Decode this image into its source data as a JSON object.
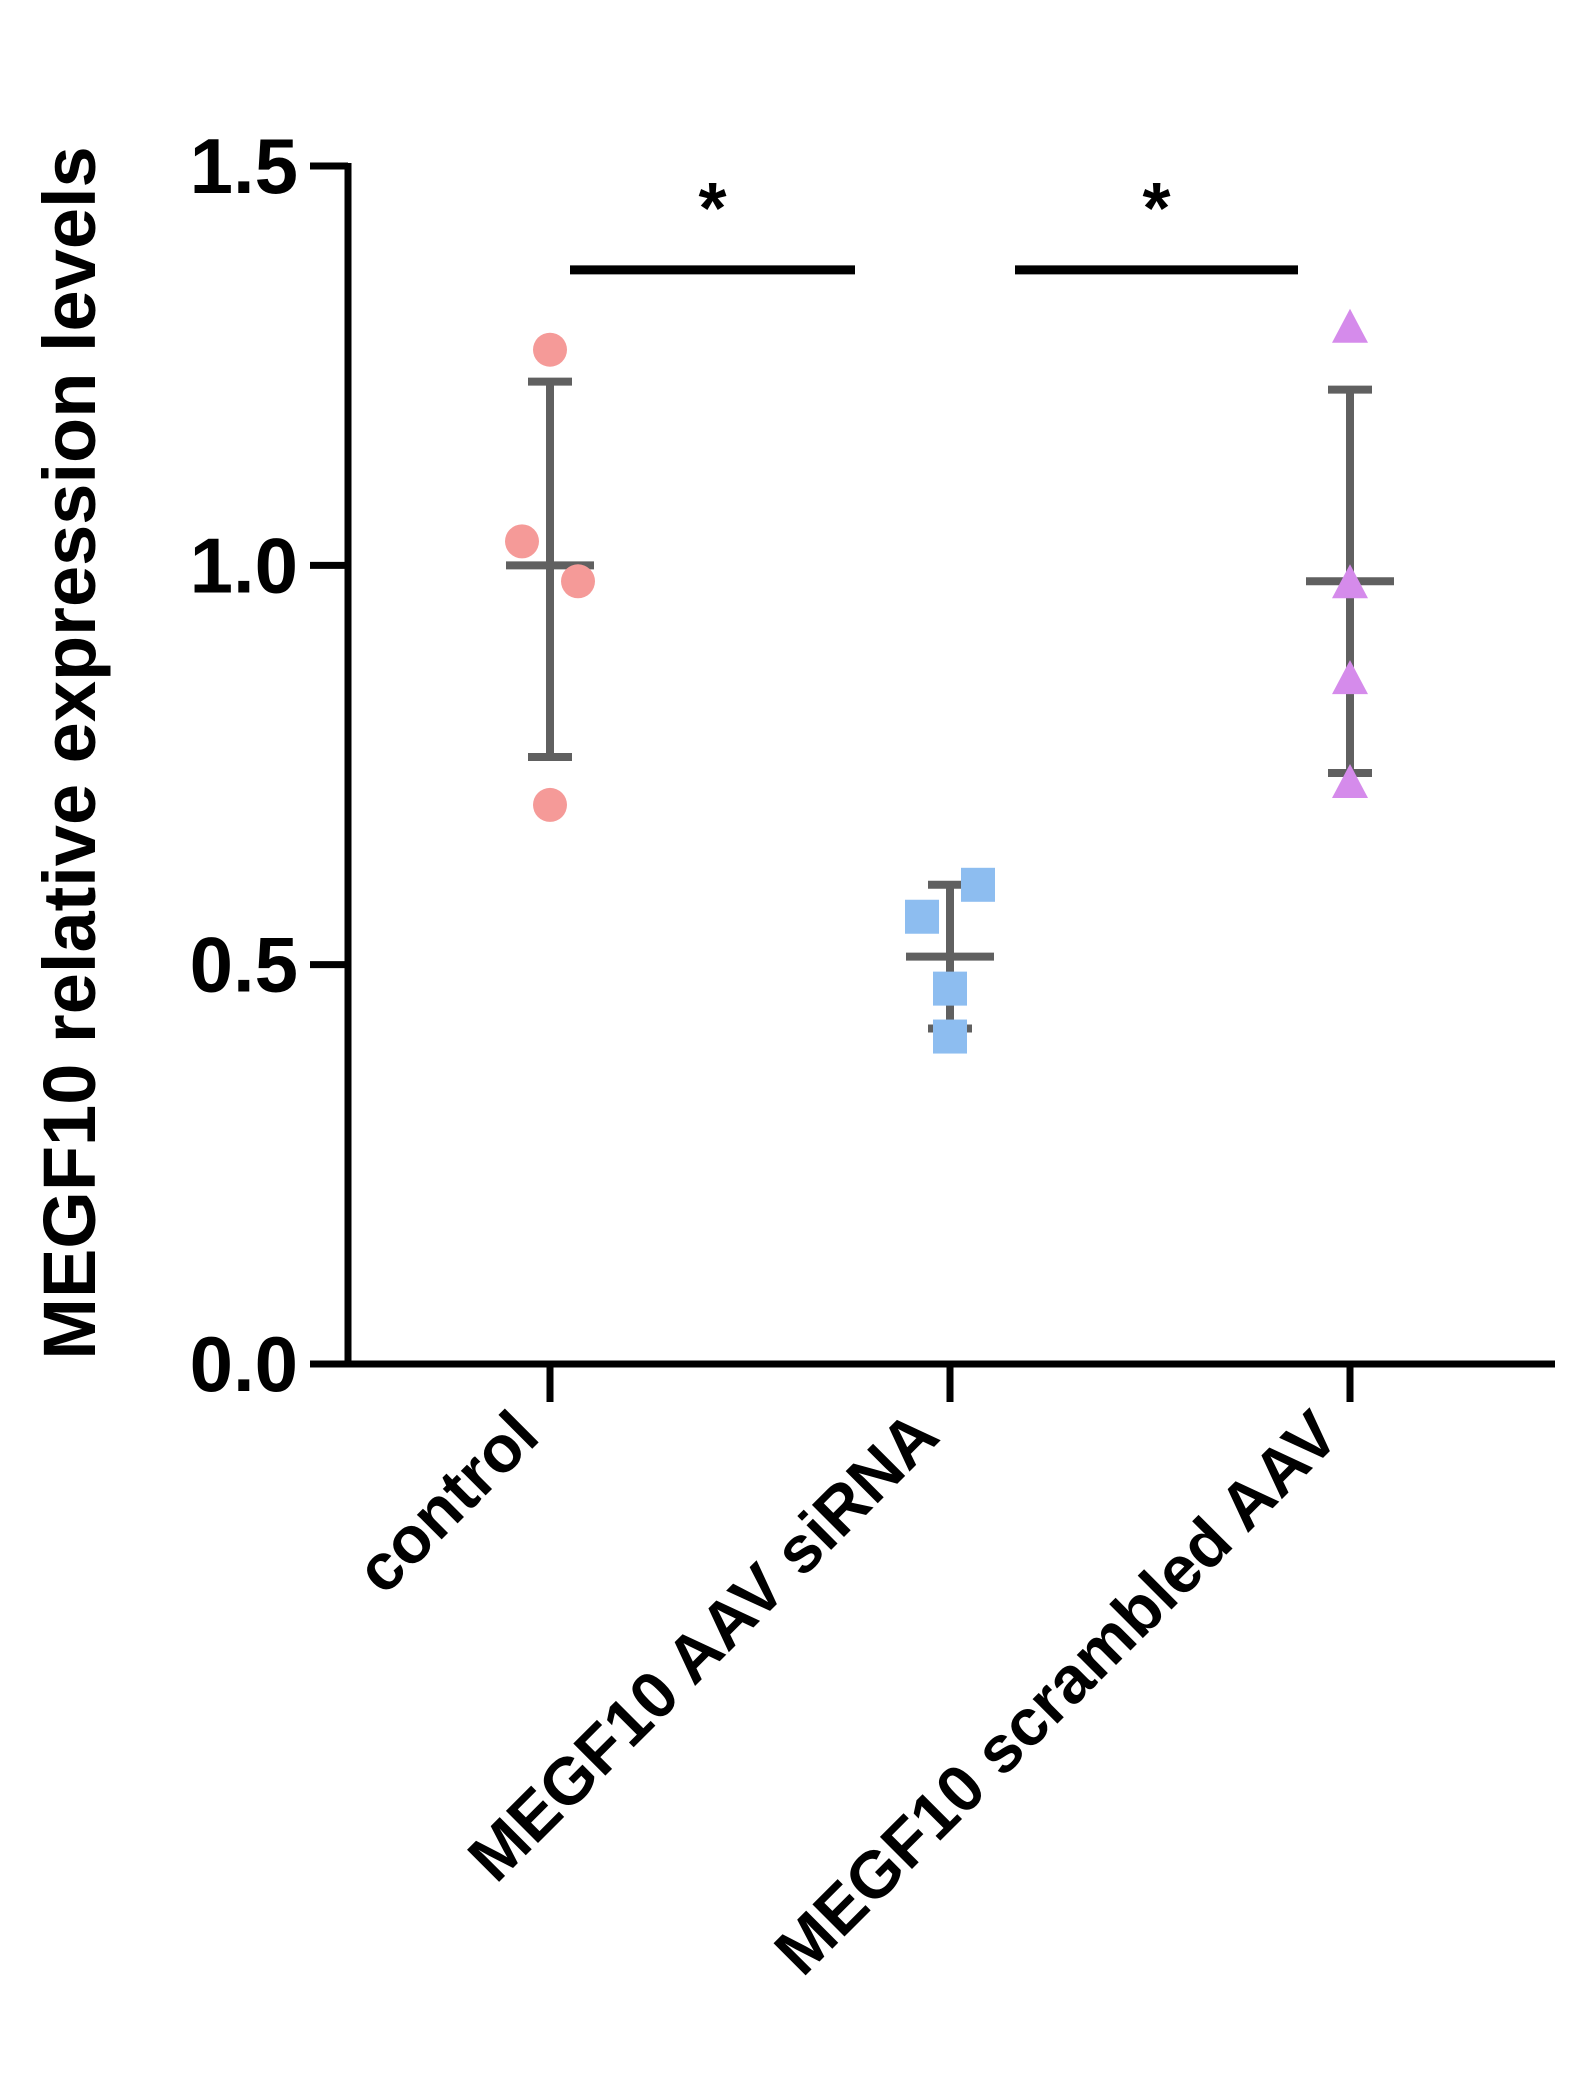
{
  "chart_data": {
    "type": "scatter",
    "title": "",
    "xlabel": "",
    "ylabel": "MEGF10 relative expression levels",
    "ylim": [
      0,
      1.5
    ],
    "y_ticks": [
      {
        "value": 0.0,
        "label": "0.0"
      },
      {
        "value": 0.5,
        "label": "0.5"
      },
      {
        "value": 1.0,
        "label": "1.0"
      },
      {
        "value": 1.5,
        "label": "1.5"
      }
    ],
    "grid": false,
    "legend": "none",
    "categories": [
      "control",
      "MEGF10 AAV siRNA",
      "MEGF10 scrambled AAV"
    ],
    "series": [
      {
        "category": "control",
        "marker": "circle",
        "color": "#F59A98",
        "points": [
          1.27,
          1.03,
          0.98,
          0.7
        ],
        "mean": 1.0,
        "sd_upper": 1.23,
        "sd_lower": 0.76
      },
      {
        "category": "MEGF10 AAV siRNA",
        "marker": "square",
        "color": "#8DBDF0",
        "points": [
          0.6,
          0.56,
          0.47,
          0.41
        ],
        "mean": 0.51,
        "sd_upper": 0.6,
        "sd_lower": 0.42
      },
      {
        "category": "MEGF10 scrambled AAV",
        "marker": "triangle",
        "color": "#D58BEB",
        "points": [
          1.3,
          0.98,
          0.86,
          0.73
        ],
        "mean": 0.98,
        "sd_upper": 1.22,
        "sd_lower": 0.74
      }
    ],
    "error_bar_color": "#606060",
    "significance": [
      {
        "from": "control",
        "to": "MEGF10 AAV siRNA",
        "y": 1.37,
        "label": "*"
      },
      {
        "from": "MEGF10 AAV siRNA",
        "to": "MEGF10 scrambled AAV",
        "y": 1.37,
        "label": "*"
      }
    ]
  }
}
